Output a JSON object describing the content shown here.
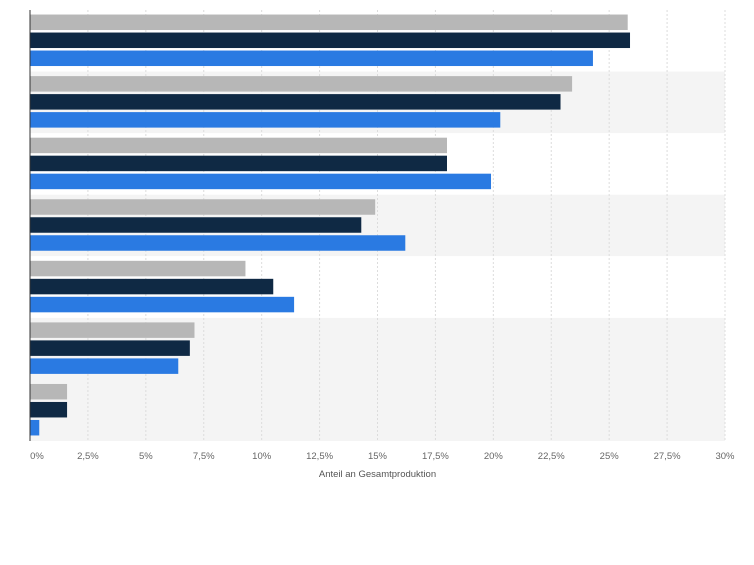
{
  "chart_data": {
    "type": "bar",
    "orientation": "horizontal",
    "xlabel": "Anteil an Gesamtproduktion",
    "ylabel": "",
    "xlim": [
      0,
      30
    ],
    "x_ticks": [
      "0%",
      "2,5%",
      "5%",
      "7,5%",
      "10%",
      "12,5%",
      "15%",
      "17,5%",
      "20%",
      "22,5%",
      "25%",
      "27,5%",
      "30%"
    ],
    "grid": "vertical dashed",
    "legend": "none",
    "categories": [
      "",
      "",
      "",
      "",
      "",
      "",
      ""
    ],
    "series": [
      {
        "color": "#b7b7b7",
        "values": [
          25.8,
          23.4,
          18.0,
          14.9,
          9.3,
          7.1,
          1.6
        ]
      },
      {
        "color": "#0f2944",
        "values": [
          25.9,
          22.9,
          18.0,
          14.3,
          10.5,
          6.9,
          1.6
        ]
      },
      {
        "color": "#2a7ae2",
        "values": [
          24.3,
          20.3,
          19.9,
          16.2,
          11.4,
          6.4,
          0.4
        ]
      }
    ]
  }
}
